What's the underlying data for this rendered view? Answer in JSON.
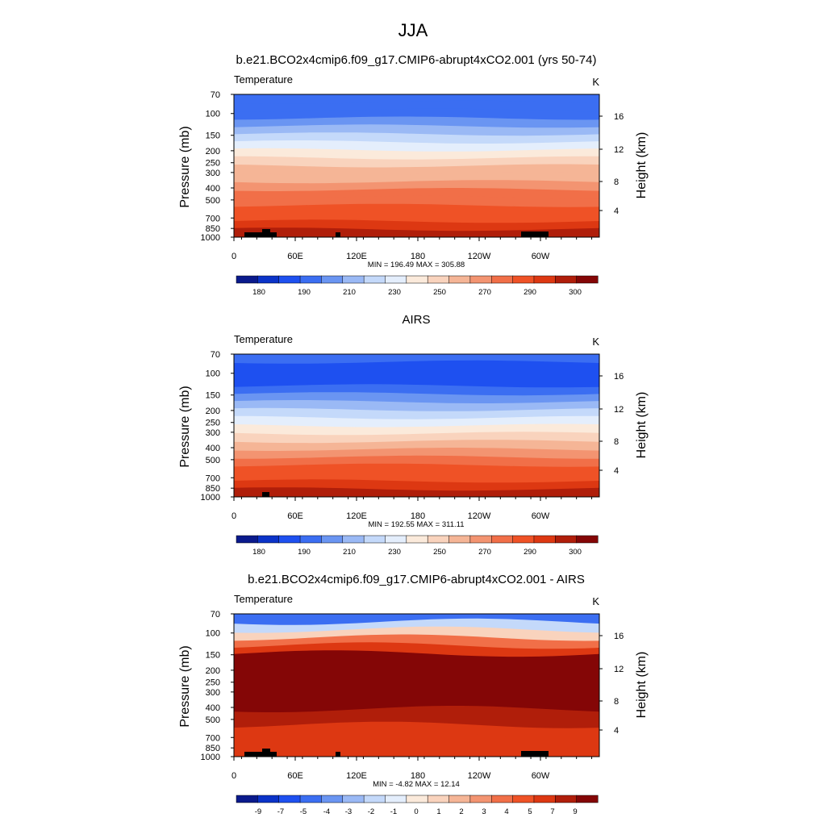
{
  "figure": {
    "title": "JJA"
  },
  "colors": {
    "abs_scale": [
      "#0a1a8c",
      "#0b33c8",
      "#1e50f0",
      "#3b6ef2",
      "#6a95f2",
      "#9ab9f5",
      "#c4d9fa",
      "#e4eefc",
      "#fbeadb",
      "#f9d3bd",
      "#f5b596",
      "#f39471",
      "#f16f48",
      "#ef5226",
      "#dd3812",
      "#b01e0a",
      "#840606"
    ],
    "diff_scale": [
      "#0a1a8c",
      "#0b33c8",
      "#1e50f0",
      "#3b6ef2",
      "#6a95f2",
      "#9ab9f5",
      "#c4d9fa",
      "#e4eefc",
      "#fbeadb",
      "#f9d3bd",
      "#f5b596",
      "#f39471",
      "#f16f48",
      "#ef5226",
      "#dd3812",
      "#b01e0a",
      "#840606"
    ],
    "land": "#000000"
  },
  "chart_data": [
    {
      "type": "heatmap",
      "panel_title": "b.e21.BCO2x4cmip6.f09_g17.CMIP6-abrupt4xCO2.001 (yrs 50-74)",
      "variable": "Temperature",
      "units": "K",
      "ylabel": "Pressure (mb)",
      "ylabel_right": "Height (km)",
      "pressure_levels": [
        "70",
        "100",
        "150",
        "200",
        "250",
        "300",
        "400",
        "500",
        "700",
        "850",
        "1000"
      ],
      "height_ticks": [
        "16",
        "12",
        "8",
        "4"
      ],
      "x_ticks": [
        "0",
        "60E",
        "120E",
        "180",
        "120W",
        "60W"
      ],
      "stats": "MIN = 196.49  MAX = 305.88",
      "colorbar_labels": [
        "180",
        "190",
        "210",
        "230",
        "250",
        "270",
        "290",
        "300"
      ],
      "zonal_band_levels": [
        3,
        3,
        3,
        4,
        5,
        6,
        7,
        8,
        9,
        10,
        10,
        11,
        12,
        12,
        13,
        13,
        14,
        15
      ]
    },
    {
      "type": "heatmap",
      "panel_title": "AIRS",
      "variable": "Temperature",
      "units": "K",
      "ylabel": "Pressure (mb)",
      "ylabel_right": "Height (km)",
      "pressure_levels": [
        "70",
        "100",
        "150",
        "200",
        "250",
        "300",
        "400",
        "500",
        "700",
        "850",
        "1000"
      ],
      "height_ticks": [
        "16",
        "12",
        "8",
        "4"
      ],
      "x_ticks": [
        "0",
        "60E",
        "120E",
        "180",
        "120W",
        "60W"
      ],
      "stats": "MIN = 192.55  MAX = 311.11",
      "colorbar_labels": [
        "180",
        "190",
        "210",
        "230",
        "250",
        "270",
        "290",
        "300"
      ],
      "zonal_band_levels": [
        3,
        2,
        2,
        2,
        3,
        4,
        5,
        6,
        7,
        8,
        9,
        10,
        11,
        12,
        13,
        13,
        14,
        15
      ]
    },
    {
      "type": "heatmap",
      "panel_title": "b.e21.BCO2x4cmip6.f09_g17.CMIP6-abrupt4xCO2.001 - AIRS",
      "variable": "Temperature",
      "units": "K",
      "ylabel": "Pressure (mb)",
      "ylabel_right": "Height (km)",
      "pressure_levels": [
        "70",
        "100",
        "150",
        "200",
        "250",
        "300",
        "400",
        "500",
        "700",
        "850",
        "1000"
      ],
      "height_ticks": [
        "16",
        "12",
        "8",
        "4"
      ],
      "x_ticks": [
        "0",
        "60E",
        "120E",
        "180",
        "120W",
        "60W"
      ],
      "stats": "MIN = -4.82  MAX = 12.14",
      "colorbar_labels": [
        "-9",
        "-7",
        "-5",
        "-4",
        "-3",
        "-2",
        "-1",
        "0",
        "1",
        "2",
        "3",
        "4",
        "5",
        "7",
        "9"
      ],
      "zonal_band_levels": [
        3,
        6,
        9,
        12,
        14,
        16,
        16,
        16,
        16,
        16,
        16,
        16,
        15,
        15,
        14,
        14,
        14,
        14
      ]
    }
  ]
}
